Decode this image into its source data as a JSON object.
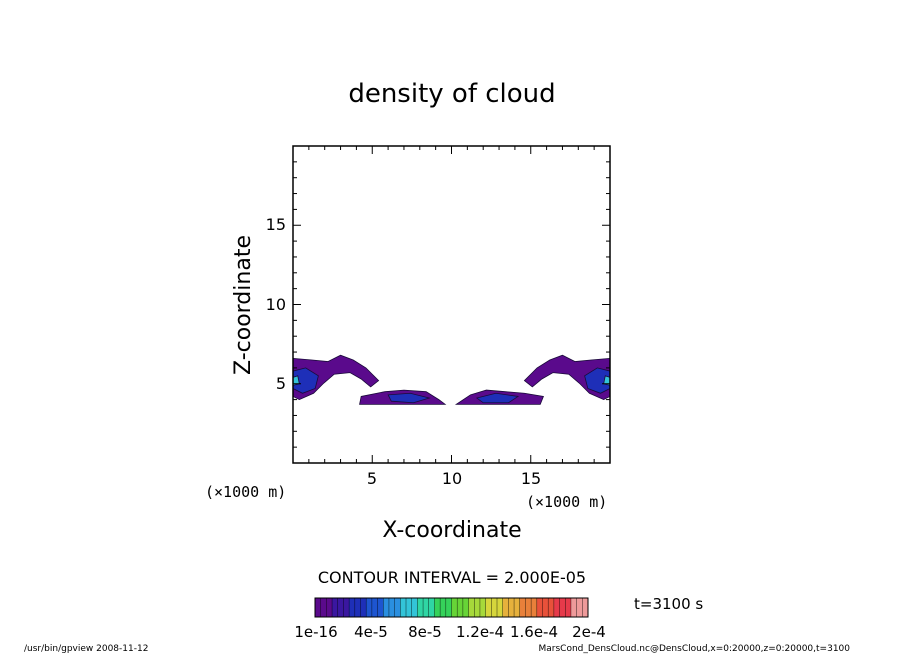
{
  "chart_data": {
    "type": "heatmap",
    "title": "density of cloud",
    "xlabel": "X-coordinate",
    "ylabel": "Z-coordinate",
    "x_unit": "(×1000 m)",
    "y_unit": "(×1000 m)",
    "xlim": [
      0,
      20
    ],
    "ylim": [
      0,
      20
    ],
    "x_ticks": [
      5,
      10,
      15
    ],
    "y_ticks": [
      5,
      10,
      15
    ],
    "contour_interval_text": "CONTOUR INTERVAL = 2.000E-05",
    "time_label": "t=3100 s",
    "colorbar": {
      "tick_labels": [
        "1e-16",
        "4e-5",
        "8e-5",
        "1.2e-4",
        "1.6e-4",
        "2e-4"
      ],
      "range": [
        1e-16,
        0.0002
      ],
      "colors": [
        "#5a0a8c",
        "#3a17a0",
        "#1e2fb8",
        "#1d55d0",
        "#2a8fe0",
        "#33c4d8",
        "#2fd6a4",
        "#35d25a",
        "#67d437",
        "#a6d93a",
        "#d6d63c",
        "#e6b13c",
        "#e8803a",
        "#e8513a",
        "#e63a4a",
        "#ee9a9a"
      ]
    },
    "regions": [
      {
        "name": "left-edge cloud",
        "x_range": [
          0,
          5.5
        ],
        "z_range": [
          4.0,
          6.7
        ],
        "peak_density": 6e-05
      },
      {
        "name": "central lower band left",
        "x_range": [
          4.2,
          9.6
        ],
        "z_range": [
          3.6,
          4.6
        ],
        "peak_density": 4e-05
      },
      {
        "name": "central lower band right",
        "x_range": [
          10.2,
          15.8
        ],
        "z_range": [
          3.6,
          4.6
        ],
        "peak_density": 4e-05
      },
      {
        "name": "right-edge cloud",
        "x_range": [
          14.5,
          20
        ],
        "z_range": [
          4.0,
          6.7
        ],
        "peak_density": 6e-05
      }
    ]
  },
  "footer": {
    "left": "/usr/bin/gpview   2008-11-12",
    "right": "MarsCond_DensCloud.nc@DensCloud,x=0:20000,z=0:20000,t=3100"
  }
}
